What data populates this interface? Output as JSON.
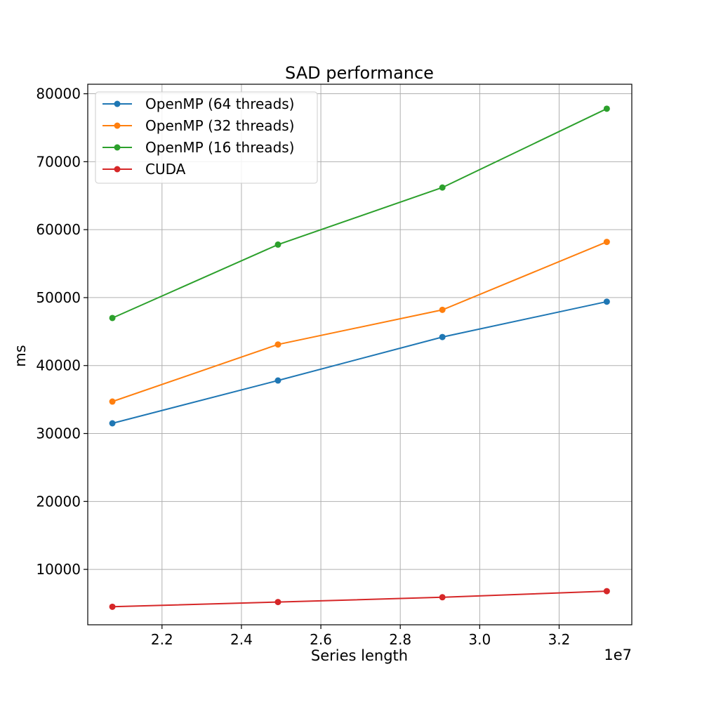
{
  "chart_data": {
    "type": "line",
    "title": "SAD performance",
    "xlabel": "Series length",
    "ylabel": "ms",
    "x_offset_label": "1e7",
    "x": [
      20750000,
      24920000,
      29060000,
      33200000
    ],
    "xlim": [
      20130000,
      33830000
    ],
    "ylim": [
      0,
      81400000
    ],
    "x_ticks": [
      22000000,
      24000000,
      26000000,
      28000000,
      30000000,
      32000000
    ],
    "x_tick_labels": [
      "2.2",
      "2.4",
      "2.6",
      "2.8",
      "3.0",
      "3.2"
    ],
    "y_ticks": [
      10000,
      20000,
      30000,
      40000,
      50000,
      60000,
      70000,
      80000
    ],
    "y_tick_labels": [
      "10000",
      "20000",
      "30000",
      "40000",
      "50000",
      "60000",
      "70000",
      "80000"
    ],
    "grid": true,
    "legend_position": "top-left",
    "series": [
      {
        "name": "OpenMP (64 threads)",
        "color": "#1f77b4",
        "values": [
          31500,
          37800,
          44200,
          49400
        ]
      },
      {
        "name": "OpenMP (32 threads)",
        "color": "#ff7f0e",
        "values": [
          34700,
          43100,
          48200,
          58200
        ]
      },
      {
        "name": "OpenMP (16 threads)",
        "color": "#2ca02c",
        "values": [
          47000,
          57800,
          66200,
          77800
        ]
      },
      {
        "name": "CUDA",
        "color": "#d62728",
        "values": [
          4500,
          5200,
          5900,
          6800
        ]
      }
    ]
  }
}
